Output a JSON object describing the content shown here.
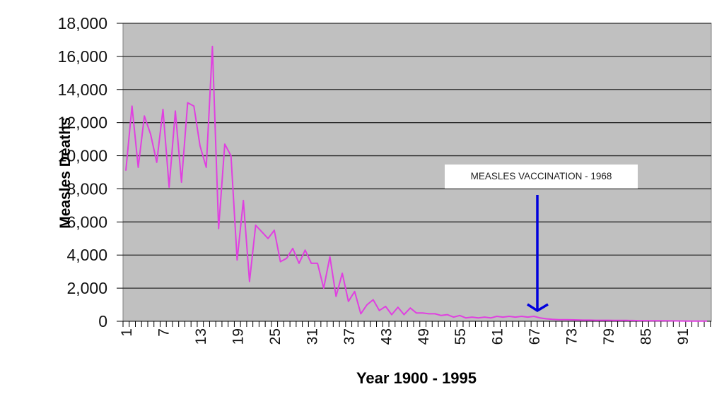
{
  "chart_data": {
    "type": "line",
    "title": "",
    "xlabel": "Year 1900 - 1995",
    "ylabel": "Measles Deaths",
    "ylim": [
      0,
      18000
    ],
    "yticks": [
      0,
      2000,
      4000,
      6000,
      8000,
      10000,
      12000,
      14000,
      16000,
      18000
    ],
    "ytick_labels": [
      "0",
      "2,000",
      "4,000",
      "6,000",
      "8,000",
      "10,000",
      "12,000",
      "14,000",
      "16,000",
      "18,000"
    ],
    "xtick_labels": [
      "1",
      "7",
      "13",
      "19",
      "25",
      "31",
      "37",
      "43",
      "49",
      "55",
      "61",
      "67",
      "73",
      "79",
      "85",
      "91"
    ],
    "grid": true,
    "legend": null,
    "line_color": "#e040e0",
    "plot_background": "#c0c0c0",
    "annotation": {
      "text": "MEASLES VACCINATION - 1968",
      "arrow_color": "#0000dd",
      "arrow_x_index": 68
    },
    "x": [
      1,
      2,
      3,
      4,
      5,
      6,
      7,
      8,
      9,
      10,
      11,
      12,
      13,
      14,
      15,
      16,
      17,
      18,
      19,
      20,
      21,
      22,
      23,
      24,
      25,
      26,
      27,
      28,
      29,
      30,
      31,
      32,
      33,
      34,
      35,
      36,
      37,
      38,
      39,
      40,
      41,
      42,
      43,
      44,
      45,
      46,
      47,
      48,
      49,
      50,
      51,
      52,
      53,
      54,
      55,
      56,
      57,
      58,
      59,
      60,
      61,
      62,
      63,
      64,
      65,
      66,
      67,
      68,
      69,
      70,
      71,
      72,
      73,
      74,
      75,
      76,
      77,
      78,
      79,
      80,
      81,
      82,
      83,
      84,
      85,
      86,
      87,
      88,
      89,
      90,
      91,
      92,
      93,
      94,
      95
    ],
    "series": [
      {
        "name": "Measles Deaths",
        "values": [
          9100,
          13000,
          9300,
          12400,
          11300,
          9600,
          12800,
          8100,
          12700,
          8400,
          13200,
          13000,
          10600,
          9300,
          16600,
          5600,
          10700,
          10000,
          3700,
          7300,
          2400,
          5800,
          5400,
          5000,
          5500,
          3600,
          3800,
          4400,
          3500,
          4300,
          3500,
          3500,
          2000,
          3900,
          1500,
          2900,
          1200,
          1800,
          450,
          1000,
          1300,
          650,
          900,
          400,
          850,
          400,
          800,
          500,
          500,
          450,
          450,
          350,
          400,
          250,
          350,
          200,
          250,
          200,
          250,
          200,
          300,
          250,
          300,
          250,
          300,
          250,
          300,
          200,
          150,
          120,
          100,
          100,
          90,
          80,
          70,
          70,
          60,
          60,
          60,
          50,
          50,
          50,
          45,
          40,
          40,
          35,
          30,
          30,
          25,
          20,
          15,
          10,
          10,
          10,
          10
        ]
      }
    ]
  },
  "labels": {
    "ylabel": "Measles Deaths",
    "xlabel": "Year 1900 - 1995",
    "annotation": "MEASLES VACCINATION - 1968"
  }
}
